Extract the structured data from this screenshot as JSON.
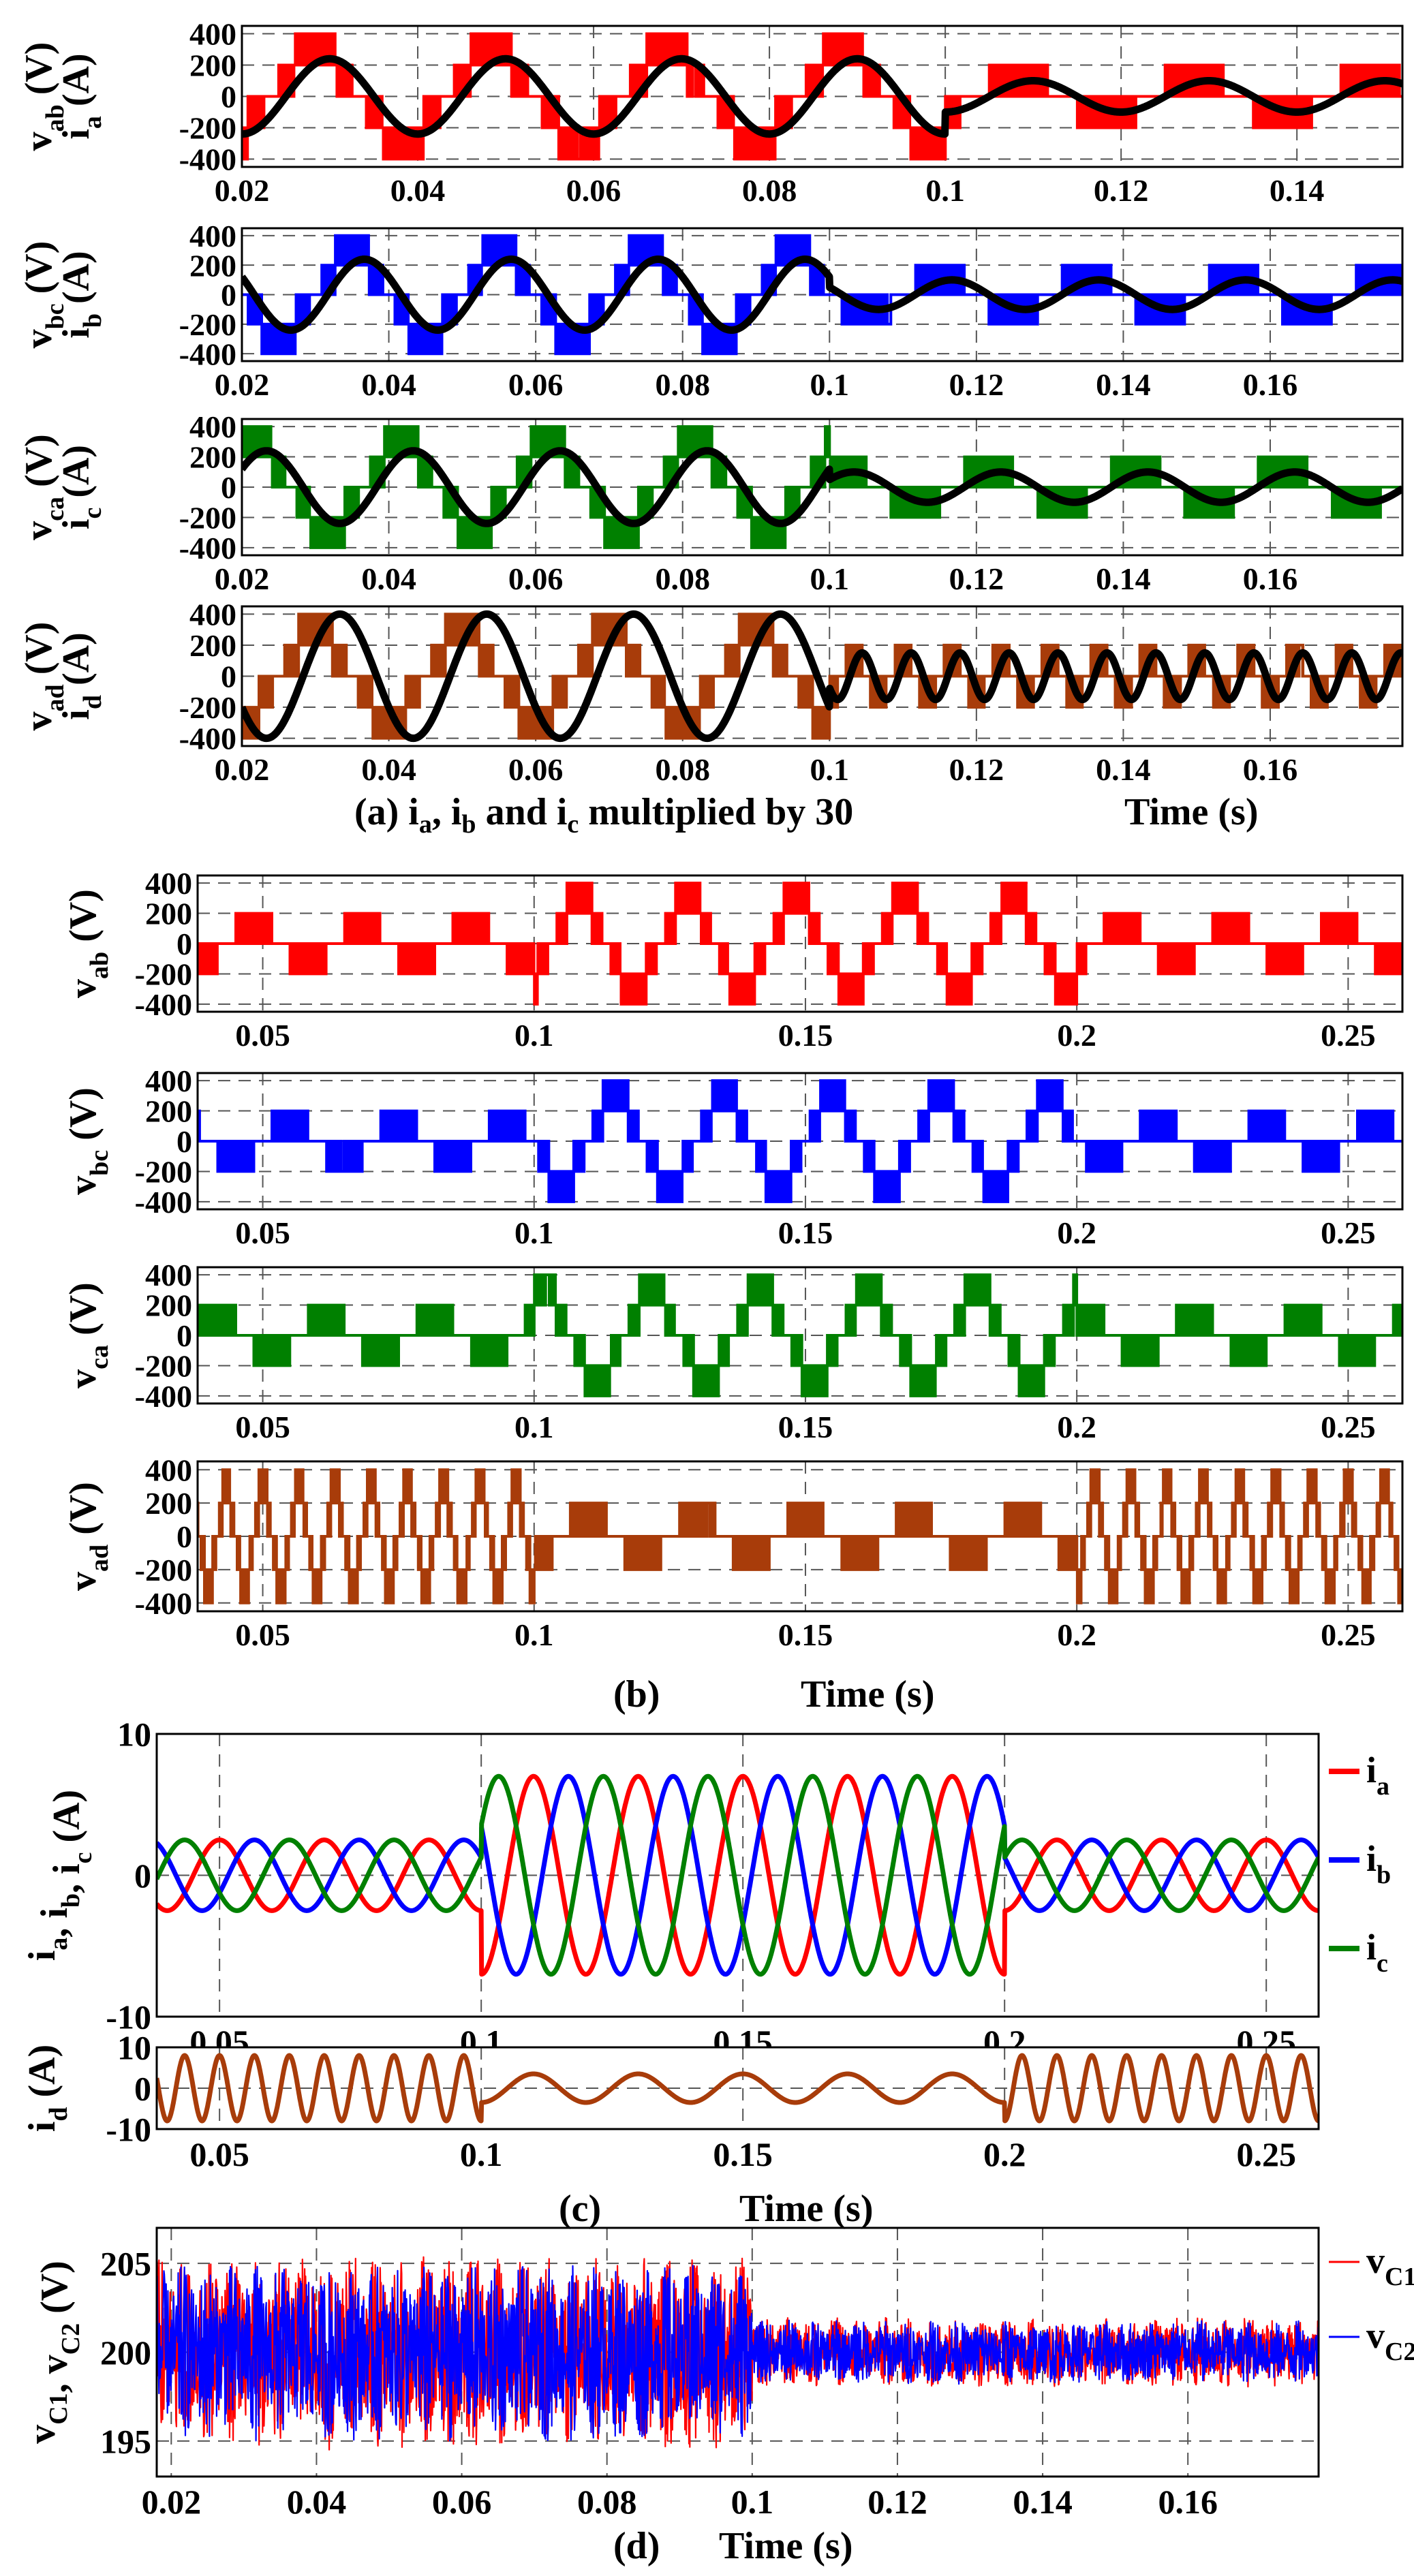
{
  "colors": {
    "red": "#ff0000",
    "blue": "#0000ff",
    "green": "#008000",
    "brown": "#a83c0a",
    "black": "#000000"
  },
  "captions": {
    "a_prefix": "(a) i",
    "a_s1": "a",
    "a_mid1": ", i",
    "a_s2": "b",
    "a_mid2": " and i",
    "a_s3": "c",
    "a_suffix": " multiplied by 30",
    "b": "(b)",
    "c": "(c)",
    "d": "(d)",
    "time": "Time (s)"
  },
  "chart_data": [
    {
      "id": "a1",
      "type": "line",
      "group": "a",
      "ylabel_lines": [
        {
          "m": "v",
          "s": "ab",
          "u": "(V)"
        },
        {
          "m": "i",
          "s": "a",
          "u": "(A)"
        }
      ],
      "xlim": [
        0.02,
        0.152
      ],
      "ylim": [
        -450,
        450
      ],
      "xticks": [
        0.02,
        0.04,
        0.06,
        0.08,
        0.1,
        0.12,
        0.14
      ],
      "yticks": [
        -400,
        -200,
        0,
        200,
        400
      ],
      "series": [
        {
          "name": "v_ab",
          "kind": "pwm",
          "color": "red",
          "freq": 50,
          "phase_deg": -60,
          "levels_before": [
            0,
            200,
            400
          ],
          "levels_after": [
            0,
            200
          ]
        },
        {
          "name": "i_a x30",
          "kind": "sine",
          "color": "black",
          "freq": 50,
          "phase_deg": -90,
          "amp_before": 240,
          "amp_after": 100
        }
      ],
      "switch_t": 0.1
    },
    {
      "id": "a2",
      "type": "line",
      "group": "a",
      "ylabel_lines": [
        {
          "m": "v",
          "s": "bc",
          "u": "(V)"
        },
        {
          "m": "i",
          "s": "b",
          "u": "(A)"
        }
      ],
      "xlim": [
        0.02,
        0.178
      ],
      "ylim": [
        -450,
        450
      ],
      "xticks": [
        0.02,
        0.04,
        0.06,
        0.08,
        0.1,
        0.12,
        0.14,
        0.16
      ],
      "yticks": [
        -400,
        -200,
        0,
        200,
        400
      ],
      "series": [
        {
          "name": "v_bc",
          "kind": "pwm",
          "color": "blue",
          "freq": 50,
          "phase_deg": -180,
          "levels_before": [
            0,
            200,
            400
          ],
          "levels_after": [
            0,
            200
          ]
        },
        {
          "name": "i_b x30",
          "kind": "sine",
          "color": "black",
          "freq": 50,
          "phase_deg": -210,
          "amp_before": 240,
          "amp_after": 100
        }
      ],
      "switch_t": 0.1
    },
    {
      "id": "a3",
      "type": "line",
      "group": "a",
      "ylabel_lines": [
        {
          "m": "v",
          "s": "ca",
          "u": "(V)"
        },
        {
          "m": "i",
          "s": "c",
          "u": "(A)"
        }
      ],
      "xlim": [
        0.02,
        0.178
      ],
      "ylim": [
        -450,
        450
      ],
      "xticks": [
        0.02,
        0.04,
        0.06,
        0.08,
        0.1,
        0.12,
        0.14,
        0.16
      ],
      "yticks": [
        -400,
        -200,
        0,
        200,
        400
      ],
      "series": [
        {
          "name": "v_ca",
          "kind": "pwm",
          "color": "green",
          "freq": 50,
          "phase_deg": 60,
          "levels_before": [
            0,
            200,
            400
          ],
          "levels_after": [
            0,
            200
          ]
        },
        {
          "name": "i_c x30",
          "kind": "sine",
          "color": "black",
          "freq": 50,
          "phase_deg": 30,
          "amp_before": 240,
          "amp_after": 100
        }
      ],
      "switch_t": 0.1
    },
    {
      "id": "a4",
      "type": "line",
      "group": "a",
      "ylabel_lines": [
        {
          "m": "v",
          "s": "ad",
          "u": "(V)"
        },
        {
          "m": "i",
          "s": "d",
          "u": "(A)"
        }
      ],
      "xlim": [
        0.02,
        0.178
      ],
      "ylim": [
        -450,
        450
      ],
      "xticks": [
        0.02,
        0.04,
        0.06,
        0.08,
        0.1,
        0.12,
        0.14,
        0.16
      ],
      "yticks": [
        -400,
        -200,
        0,
        200,
        400
      ],
      "series": [
        {
          "name": "v_ad",
          "kind": "pwm",
          "color": "brown",
          "freq": 50,
          "phase_deg": -90,
          "levels_before": [
            0,
            200,
            400
          ],
          "levels_after": [
            0,
            200
          ],
          "freq_after": 150
        },
        {
          "name": "i_d",
          "kind": "sine",
          "color": "black",
          "freq": 50,
          "phase_deg": -150,
          "amp_before": 400,
          "amp_after": 150,
          "freq_after": 150
        }
      ],
      "switch_t": 0.1
    },
    {
      "id": "b1",
      "type": "line",
      "group": "b",
      "ylabel_lines": [
        {
          "m": "v",
          "s": "ab",
          "u": "(V)"
        }
      ],
      "xlim": [
        0.038,
        0.26
      ],
      "ylim": [
        -450,
        450
      ],
      "xticks": [
        0.05,
        0.1,
        0.15,
        0.2,
        0.25
      ],
      "yticks": [
        -400,
        -200,
        0,
        200,
        400
      ],
      "series": [
        {
          "name": "v_ab",
          "kind": "pwm3",
          "color": "red",
          "freq": 50,
          "phase_deg": -60,
          "levels_outer": [
            0,
            200
          ],
          "levels_inner": [
            0,
            200,
            400
          ]
        }
      ],
      "window": [
        0.1,
        0.2
      ]
    },
    {
      "id": "b2",
      "type": "line",
      "group": "b",
      "ylabel_lines": [
        {
          "m": "v",
          "s": "bc",
          "u": "(V)"
        }
      ],
      "xlim": [
        0.038,
        0.26
      ],
      "ylim": [
        -450,
        450
      ],
      "xticks": [
        0.05,
        0.1,
        0.15,
        0.2,
        0.25
      ],
      "yticks": [
        -400,
        -200,
        0,
        200,
        400
      ],
      "series": [
        {
          "name": "v_bc",
          "kind": "pwm3",
          "color": "blue",
          "freq": 50,
          "phase_deg": -180,
          "levels_outer": [
            0,
            200
          ],
          "levels_inner": [
            0,
            200,
            400
          ]
        }
      ],
      "window": [
        0.1,
        0.2
      ]
    },
    {
      "id": "b3",
      "type": "line",
      "group": "b",
      "ylabel_lines": [
        {
          "m": "v",
          "s": "ca",
          "u": "(V)"
        }
      ],
      "xlim": [
        0.038,
        0.26
      ],
      "ylim": [
        -450,
        450
      ],
      "xticks": [
        0.05,
        0.1,
        0.15,
        0.2,
        0.25
      ],
      "yticks": [
        -400,
        -200,
        0,
        200,
        400
      ],
      "series": [
        {
          "name": "v_ca",
          "kind": "pwm3",
          "color": "green",
          "freq": 50,
          "phase_deg": 60,
          "levels_outer": [
            0,
            200
          ],
          "levels_inner": [
            0,
            200,
            400
          ]
        }
      ],
      "window": [
        0.1,
        0.2
      ]
    },
    {
      "id": "b4",
      "type": "line",
      "group": "b",
      "ylabel_lines": [
        {
          "m": "v",
          "s": "ad",
          "u": "(V)"
        }
      ],
      "xlim": [
        0.038,
        0.26
      ],
      "ylim": [
        -450,
        450
      ],
      "xticks": [
        0.05,
        0.1,
        0.15,
        0.2,
        0.25
      ],
      "yticks": [
        -400,
        -200,
        0,
        200,
        400
      ],
      "series": [
        {
          "name": "v_ad",
          "kind": "pwm3",
          "color": "brown",
          "freq": 50,
          "phase_deg": -90,
          "levels_outer": [
            0,
            200,
            400
          ],
          "levels_inner": [
            0,
            200
          ],
          "freq_outer": 150
        }
      ],
      "window": [
        0.1,
        0.2
      ]
    },
    {
      "id": "c1",
      "type": "line",
      "group": "c",
      "ylabel_lines": [
        {
          "m": "i",
          "s": "a",
          "u": ""
        },
        {
          "m": ", i",
          "s": "b",
          "u": ""
        },
        {
          "m": ", i",
          "s": "c",
          "u": " (A)"
        }
      ],
      "xlim": [
        0.038,
        0.26
      ],
      "ylim": [
        -10,
        10
      ],
      "xticks": [
        0.05,
        0.1,
        0.15,
        0.2,
        0.25
      ],
      "yticks": [
        -10,
        0,
        10
      ],
      "legend": {
        "placement": "right",
        "entries": [
          {
            "m": "i",
            "s": "a",
            "color": "red"
          },
          {
            "m": "i",
            "s": "b",
            "color": "blue"
          },
          {
            "m": "i",
            "s": "c",
            "color": "green"
          }
        ]
      },
      "series": [
        {
          "name": "i_a",
          "kind": "sine3",
          "color": "red",
          "freq": 50,
          "phase_deg": -90,
          "amp_outer": 2.5,
          "amp_inner": 7
        },
        {
          "name": "i_b",
          "kind": "sine3",
          "color": "blue",
          "freq": 50,
          "phase_deg": -210,
          "amp_outer": 2.5,
          "amp_inner": 7
        },
        {
          "name": "i_c",
          "kind": "sine3",
          "color": "green",
          "freq": 50,
          "phase_deg": 30,
          "amp_outer": 2.5,
          "amp_inner": 7
        }
      ],
      "window": [
        0.1,
        0.2
      ]
    },
    {
      "id": "c2",
      "type": "line",
      "group": "c",
      "ylabel_lines": [
        {
          "m": "i",
          "s": "d",
          "u": "(A)"
        }
      ],
      "xlim": [
        0.038,
        0.26
      ],
      "ylim": [
        -10,
        10
      ],
      "xticks": [
        0.05,
        0.1,
        0.15,
        0.2,
        0.25
      ],
      "yticks": [
        -10,
        0,
        10
      ],
      "series": [
        {
          "name": "i_d",
          "kind": "sine3",
          "color": "brown",
          "freq_outer": 150,
          "freq_inner": 50,
          "phase_deg": -90,
          "amp_outer": 8,
          "amp_inner": 3.5
        }
      ],
      "window": [
        0.1,
        0.2
      ]
    },
    {
      "id": "d1",
      "type": "line",
      "group": "d",
      "ylabel_lines": [
        {
          "m": "v",
          "s": "C1",
          "u": ""
        },
        {
          "m": ", v",
          "s": "C2",
          "u": " (V)"
        }
      ],
      "xlim": [
        0.018,
        0.178
      ],
      "ylim": [
        193,
        207
      ],
      "xticks": [
        0.02,
        0.04,
        0.06,
        0.08,
        0.1,
        0.12,
        0.14,
        0.16
      ],
      "yticks": [
        195,
        200,
        205
      ],
      "legend": {
        "placement": "right",
        "entries": [
          {
            "m": "v",
            "s": "C1",
            "color": "red"
          },
          {
            "m": "v",
            "s": "C2",
            "color": "blue"
          }
        ]
      },
      "series": [
        {
          "name": "v_C1",
          "kind": "ripple",
          "color": "red",
          "center": 200,
          "amp_before": 5.5,
          "amp_after": 2.0
        },
        {
          "name": "v_C2",
          "kind": "ripple",
          "color": "blue",
          "center": 200,
          "amp_before": 5.0,
          "amp_after": 1.8
        }
      ],
      "switch_t": 0.1
    }
  ]
}
